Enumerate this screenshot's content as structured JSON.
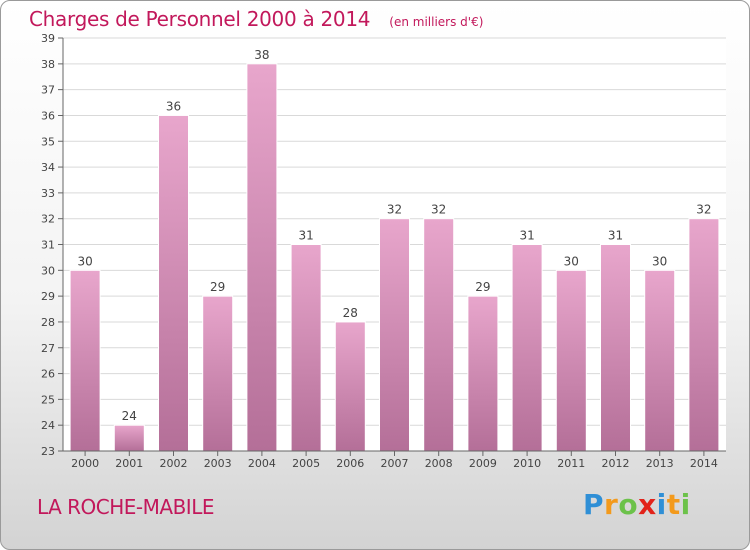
{
  "chart_data": {
    "type": "bar",
    "title": "Charges de Personnel 2000 à 2014",
    "subtitle": "(en milliers d'€)",
    "categories": [
      "2000",
      "2001",
      "2002",
      "2003",
      "2004",
      "2005",
      "2006",
      "2007",
      "2008",
      "2009",
      "2010",
      "2011",
      "2012",
      "2013",
      "2014"
    ],
    "values": [
      30,
      24,
      36,
      29,
      38,
      31,
      28,
      32,
      32,
      29,
      31,
      30,
      31,
      30,
      32
    ],
    "ylim": [
      23,
      39
    ],
    "yticks": [
      23,
      24,
      25,
      26,
      27,
      28,
      29,
      30,
      31,
      32,
      33,
      34,
      35,
      36,
      37,
      38,
      39
    ],
    "grid": true,
    "colors": {
      "bar_top": "#e8a6cc",
      "bar_bottom": "#b46f98",
      "accent": "#c2185b"
    }
  },
  "footer": {
    "commune": "LA ROCHE-MABILE",
    "brand_letters": [
      {
        "char": "P",
        "color": "#2f8fd6"
      },
      {
        "char": "r",
        "color": "#f39a1c"
      },
      {
        "char": "o",
        "color": "#6cc24a"
      },
      {
        "char": "x",
        "color": "#e2231a"
      },
      {
        "char": "i",
        "color": "#2f8fd6"
      },
      {
        "char": "t",
        "color": "#f39a1c"
      },
      {
        "char": "i",
        "color": "#6cc24a"
      }
    ]
  }
}
